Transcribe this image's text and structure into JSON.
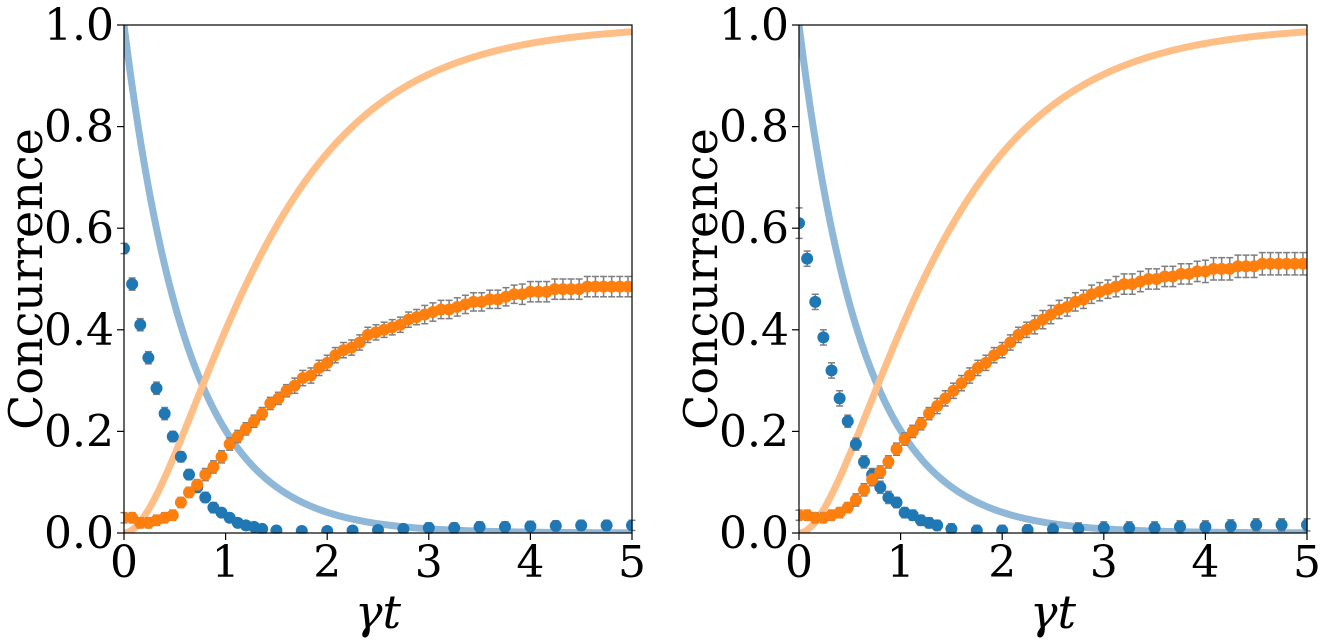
{
  "chart_data": [
    {
      "type": "scatter",
      "title": "",
      "xlabel": "γt",
      "ylabel": "Concurrence",
      "xlim": [
        0,
        5
      ],
      "ylim": [
        0,
        1
      ],
      "x_ticks": [
        "0",
        "1",
        "2",
        "3",
        "4",
        "5"
      ],
      "y_ticks": [
        "0.0",
        "0.2",
        "0.4",
        "0.6",
        "0.8",
        "1.0"
      ],
      "grid": false,
      "theory_curves": [
        {
          "name": "blue theory",
          "color": "#8fb7d8",
          "model": "exp(-1.6*x)",
          "x_range": [
            0,
            5
          ]
        },
        {
          "name": "orange theory",
          "color": "#ffbe86",
          "model": "(1-exp(-x))^2",
          "x_range": [
            0,
            5
          ]
        }
      ],
      "series": [
        {
          "name": "blue data",
          "color": "#1f77b4",
          "x": [
            0.0,
            0.08,
            0.16,
            0.24,
            0.32,
            0.4,
            0.48,
            0.56,
            0.64,
            0.72,
            0.8,
            0.88,
            0.96,
            1.04,
            1.12,
            1.2,
            1.28,
            1.36,
            1.5,
            1.75,
            2.0,
            2.25,
            2.5,
            2.75,
            3.0,
            3.25,
            3.5,
            3.75,
            4.0,
            4.25,
            4.5,
            4.75,
            5.0
          ],
          "y": [
            0.56,
            0.49,
            0.41,
            0.345,
            0.285,
            0.235,
            0.19,
            0.15,
            0.115,
            0.09,
            0.07,
            0.05,
            0.04,
            0.03,
            0.02,
            0.015,
            0.012,
            0.008,
            0.005,
            0.004,
            0.004,
            0.005,
            0.006,
            0.008,
            0.01,
            0.01,
            0.012,
            0.012,
            0.013,
            0.014,
            0.015,
            0.015,
            0.015
          ],
          "err": [
            0.01,
            0.012,
            0.012,
            0.012,
            0.012,
            0.012,
            0.01,
            0.01,
            0.01,
            0.01,
            0.01,
            0.01,
            0.008,
            0.008,
            0.008,
            0.008,
            0.008,
            0.008,
            0.008,
            0.008,
            0.008,
            0.008,
            0.008,
            0.008,
            0.01,
            0.01,
            0.01,
            0.01,
            0.01,
            0.01,
            0.01,
            0.01,
            0.01
          ]
        },
        {
          "name": "orange data",
          "color": "#ff7f0e",
          "x": [
            0.0,
            0.08,
            0.16,
            0.24,
            0.32,
            0.4,
            0.48,
            0.56,
            0.64,
            0.72,
            0.8,
            0.88,
            0.96,
            1.04,
            1.12,
            1.2,
            1.28,
            1.36,
            1.44,
            1.52,
            1.6,
            1.68,
            1.76,
            1.84,
            1.92,
            2.0,
            2.08,
            2.16,
            2.24,
            2.32,
            2.4,
            2.48,
            2.56,
            2.64,
            2.72,
            2.8,
            2.88,
            2.96,
            3.04,
            3.12,
            3.2,
            3.28,
            3.36,
            3.44,
            3.52,
            3.6,
            3.68,
            3.76,
            3.84,
            3.92,
            4.0,
            4.08,
            4.16,
            4.24,
            4.32,
            4.4,
            4.48,
            4.56,
            4.64,
            4.72,
            4.8,
            4.88,
            4.96
          ],
          "y": [
            0.03,
            0.03,
            0.02,
            0.02,
            0.025,
            0.03,
            0.035,
            0.06,
            0.08,
            0.095,
            0.115,
            0.13,
            0.15,
            0.175,
            0.19,
            0.205,
            0.22,
            0.235,
            0.255,
            0.265,
            0.28,
            0.29,
            0.305,
            0.31,
            0.325,
            0.335,
            0.35,
            0.36,
            0.365,
            0.375,
            0.39,
            0.395,
            0.4,
            0.405,
            0.41,
            0.42,
            0.425,
            0.43,
            0.435,
            0.44,
            0.44,
            0.445,
            0.45,
            0.455,
            0.455,
            0.46,
            0.46,
            0.465,
            0.47,
            0.47,
            0.475,
            0.475,
            0.475,
            0.48,
            0.48,
            0.48,
            0.48,
            0.485,
            0.485,
            0.485,
            0.485,
            0.485,
            0.485
          ],
          "err": [
            0.01,
            0.01,
            0.01,
            0.01,
            0.01,
            0.01,
            0.01,
            0.01,
            0.01,
            0.01,
            0.012,
            0.012,
            0.012,
            0.012,
            0.012,
            0.012,
            0.012,
            0.012,
            0.012,
            0.012,
            0.012,
            0.015,
            0.015,
            0.015,
            0.015,
            0.015,
            0.015,
            0.015,
            0.015,
            0.015,
            0.015,
            0.015,
            0.015,
            0.015,
            0.015,
            0.015,
            0.015,
            0.018,
            0.018,
            0.018,
            0.018,
            0.018,
            0.018,
            0.018,
            0.018,
            0.018,
            0.018,
            0.018,
            0.018,
            0.02,
            0.02,
            0.02,
            0.02,
            0.02,
            0.02,
            0.02,
            0.02,
            0.02,
            0.02,
            0.02,
            0.02,
            0.02,
            0.02
          ]
        }
      ]
    },
    {
      "type": "scatter",
      "title": "",
      "xlabel": "γt",
      "ylabel": "Concurrence",
      "xlim": [
        0,
        5
      ],
      "ylim": [
        0,
        1
      ],
      "x_ticks": [
        "0",
        "1",
        "2",
        "3",
        "4",
        "5"
      ],
      "y_ticks": [
        "0.0",
        "0.2",
        "0.4",
        "0.6",
        "0.8",
        "1.0"
      ],
      "grid": false,
      "theory_curves": [
        {
          "name": "blue theory",
          "color": "#8fb7d8",
          "model": "exp(-1.6*x)",
          "x_range": [
            0,
            5
          ]
        },
        {
          "name": "orange theory",
          "color": "#ffbe86",
          "model": "(1-exp(-x))^2",
          "x_range": [
            0,
            5
          ]
        }
      ],
      "series": [
        {
          "name": "blue data",
          "color": "#1f77b4",
          "x": [
            0.0,
            0.08,
            0.16,
            0.24,
            0.32,
            0.4,
            0.48,
            0.56,
            0.64,
            0.72,
            0.8,
            0.88,
            0.96,
            1.04,
            1.12,
            1.2,
            1.28,
            1.36,
            1.5,
            1.75,
            2.0,
            2.25,
            2.5,
            2.75,
            3.0,
            3.25,
            3.5,
            3.75,
            4.0,
            4.25,
            4.5,
            4.75,
            5.0
          ],
          "y": [
            0.61,
            0.54,
            0.455,
            0.385,
            0.32,
            0.265,
            0.22,
            0.175,
            0.14,
            0.115,
            0.09,
            0.07,
            0.06,
            0.04,
            0.035,
            0.025,
            0.02,
            0.015,
            0.008,
            0.005,
            0.005,
            0.006,
            0.007,
            0.008,
            0.01,
            0.01,
            0.01,
            0.012,
            0.012,
            0.014,
            0.016,
            0.016,
            0.016
          ],
          "err": [
            0.03,
            0.015,
            0.015,
            0.015,
            0.015,
            0.015,
            0.012,
            0.012,
            0.012,
            0.012,
            0.012,
            0.012,
            0.01,
            0.01,
            0.01,
            0.01,
            0.01,
            0.01,
            0.01,
            0.01,
            0.01,
            0.01,
            0.012,
            0.012,
            0.012,
            0.012,
            0.012,
            0.012,
            0.012,
            0.012,
            0.012,
            0.012,
            0.012
          ]
        },
        {
          "name": "orange data",
          "color": "#ff7f0e",
          "x": [
            0.0,
            0.08,
            0.16,
            0.24,
            0.32,
            0.4,
            0.48,
            0.56,
            0.64,
            0.72,
            0.8,
            0.88,
            0.96,
            1.04,
            1.12,
            1.2,
            1.28,
            1.36,
            1.44,
            1.52,
            1.6,
            1.68,
            1.76,
            1.84,
            1.92,
            2.0,
            2.08,
            2.16,
            2.24,
            2.32,
            2.4,
            2.48,
            2.56,
            2.64,
            2.72,
            2.8,
            2.88,
            2.96,
            3.04,
            3.12,
            3.2,
            3.28,
            3.36,
            3.44,
            3.52,
            3.6,
            3.68,
            3.76,
            3.84,
            3.92,
            4.0,
            4.08,
            4.16,
            4.24,
            4.32,
            4.4,
            4.48,
            4.56,
            4.64,
            4.72,
            4.8,
            4.88,
            4.96
          ],
          "y": [
            0.035,
            0.035,
            0.03,
            0.03,
            0.035,
            0.04,
            0.05,
            0.065,
            0.085,
            0.105,
            0.12,
            0.14,
            0.165,
            0.185,
            0.2,
            0.215,
            0.235,
            0.25,
            0.265,
            0.28,
            0.295,
            0.31,
            0.325,
            0.335,
            0.35,
            0.36,
            0.375,
            0.39,
            0.4,
            0.41,
            0.42,
            0.43,
            0.44,
            0.445,
            0.455,
            0.46,
            0.47,
            0.475,
            0.48,
            0.485,
            0.49,
            0.49,
            0.495,
            0.5,
            0.5,
            0.505,
            0.505,
            0.51,
            0.51,
            0.515,
            0.515,
            0.52,
            0.52,
            0.52,
            0.525,
            0.525,
            0.525,
            0.53,
            0.53,
            0.53,
            0.53,
            0.53,
            0.53
          ],
          "err": [
            0.01,
            0.01,
            0.01,
            0.01,
            0.01,
            0.01,
            0.01,
            0.012,
            0.012,
            0.012,
            0.012,
            0.012,
            0.012,
            0.012,
            0.012,
            0.012,
            0.012,
            0.015,
            0.015,
            0.015,
            0.015,
            0.015,
            0.015,
            0.015,
            0.015,
            0.015,
            0.015,
            0.015,
            0.015,
            0.018,
            0.018,
            0.018,
            0.018,
            0.018,
            0.018,
            0.018,
            0.018,
            0.018,
            0.018,
            0.02,
            0.02,
            0.02,
            0.02,
            0.02,
            0.02,
            0.02,
            0.02,
            0.02,
            0.02,
            0.02,
            0.022,
            0.022,
            0.022,
            0.022,
            0.022,
            0.022,
            0.022,
            0.022,
            0.022,
            0.022,
            0.022,
            0.022,
            0.022
          ]
        }
      ]
    }
  ]
}
